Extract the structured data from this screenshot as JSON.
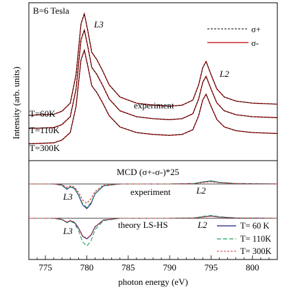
{
  "chart_data": {
    "type": "line",
    "title": "",
    "xlabel": "photon energy (eV)",
    "ylabel": "Intensity (arb. units)",
    "xlim": [
      773,
      803
    ],
    "x_ticks": [
      775,
      780,
      785,
      790,
      795,
      800
    ],
    "x_tick_labels": [
      "775",
      "780",
      "785",
      "790",
      "795",
      "800"
    ],
    "grid": false,
    "panels": [
      {
        "name": "xas",
        "annotations": {
          "field": "B=6 Tesla",
          "peak_l3": "L3",
          "peak_l2": "L2",
          "label": "experiment",
          "t60": "T=60K",
          "t110": "T=110K",
          "t300": "T=300K"
        },
        "legend": {
          "position": "top-right",
          "entries": [
            {
              "name": "σ+",
              "color": "#000000",
              "style": "dashed"
            },
            {
              "name": "σ-",
              "color": "#c00000",
              "style": "solid"
            }
          ]
        },
        "series_template_x": [
          773,
          776,
          777,
          778,
          778.7,
          779.3,
          779.7,
          780.1,
          780.6,
          781.2,
          781.9,
          782.7,
          784,
          786,
          788,
          790,
          791.5,
          792.8,
          793.5,
          794,
          794.4,
          795,
          795.7,
          796.6,
          798,
          800,
          803
        ],
        "series_template_y": [
          0.0,
          0.01,
          0.04,
          0.12,
          0.4,
          0.9,
          1.0,
          0.84,
          0.62,
          0.55,
          0.44,
          0.3,
          0.18,
          0.12,
          0.1,
          0.09,
          0.1,
          0.15,
          0.3,
          0.47,
          0.53,
          0.4,
          0.26,
          0.18,
          0.14,
          0.12,
          0.11
        ],
        "curves": [
          {
            "temperature": "T=60K",
            "offset": 0.0,
            "scale": 1.0
          },
          {
            "temperature": "T=110K",
            "offset": -0.13,
            "scale": 0.97
          },
          {
            "temperature": "T=300K",
            "offset": -0.28,
            "scale": 0.92
          }
        ]
      },
      {
        "name": "mcd-experiment",
        "annotations": {
          "title": "MCD (σ+-σ-)*25",
          "peak_l3": "L3",
          "peak_l2": "L2",
          "label": "experiment"
        },
        "series": [
          {
            "name": "T= 60 K",
            "color": "#1a1a7a",
            "style": "solid",
            "x": [
              773,
              776,
              777,
              777.6,
              778,
              778.5,
              779,
              779.5,
              780,
              780.5,
              781,
              782,
              784,
              790,
              793,
              794,
              795,
              796,
              798,
              803
            ],
            "y": [
              0,
              0,
              -0.05,
              -0.22,
              -0.12,
              -0.18,
              -0.45,
              -0.85,
              -1.0,
              -0.8,
              -0.4,
              -0.08,
              0,
              0,
              0.02,
              0.08,
              0.12,
              0.06,
              0.02,
              0
            ]
          },
          {
            "name": "T= 110K",
            "color": "#22a060",
            "style": "dashed",
            "x": [
              773,
              776,
              777,
              777.6,
              778,
              778.5,
              779,
              779.5,
              780,
              780.5,
              781,
              782,
              784,
              790,
              793,
              794,
              795,
              796,
              798,
              803
            ],
            "y": [
              0,
              0,
              -0.04,
              -0.2,
              -0.11,
              -0.16,
              -0.42,
              -0.8,
              -0.95,
              -0.76,
              -0.38,
              -0.07,
              0,
              0,
              0.02,
              0.09,
              0.13,
              0.07,
              0.02,
              0
            ]
          },
          {
            "name": "T= 300K",
            "color": "#d03030",
            "style": "dashed",
            "x": [
              773,
              776,
              777,
              777.6,
              778,
              778.5,
              779,
              779.5,
              780,
              780.5,
              781,
              782,
              784,
              790,
              793,
              794,
              795,
              796,
              798,
              803
            ],
            "y": [
              0,
              0,
              -0.03,
              -0.14,
              -0.08,
              -0.12,
              -0.34,
              -0.65,
              -0.78,
              -0.6,
              -0.3,
              -0.05,
              0,
              0,
              0.01,
              0.06,
              0.09,
              0.05,
              0.01,
              0
            ]
          }
        ]
      },
      {
        "name": "mcd-theory",
        "annotations": {
          "peak_l3": "L3",
          "peak_l2": "L2",
          "label": "theory LS-HS"
        },
        "legend": {
          "position": "bottom-right",
          "entries": [
            {
              "name": "T=  60 K",
              "color": "#1a1a7a",
              "style": "solid"
            },
            {
              "name": "T= 110K",
              "color": "#22a060",
              "style": "dashed"
            },
            {
              "name": "T= 300K",
              "color": "#d03030",
              "style": "dashed"
            }
          ]
        },
        "series": [
          {
            "name": "T= 60 K",
            "color": "#1a1a7a",
            "style": "solid",
            "x": [
              773,
              776,
              777,
              777.6,
              778,
              778.5,
              779,
              779.5,
              780,
              780.5,
              781,
              782,
              784,
              790,
              793,
              794,
              795,
              796,
              798,
              803
            ],
            "y": [
              0,
              0,
              -0.06,
              -0.2,
              -0.12,
              -0.2,
              -0.48,
              -0.88,
              -1.0,
              -0.82,
              -0.42,
              -0.09,
              0,
              0,
              0.02,
              0.07,
              0.11,
              0.06,
              0.02,
              0
            ]
          },
          {
            "name": "T= 110K",
            "color": "#22a060",
            "style": "dashed",
            "x": [
              773,
              776,
              777,
              777.6,
              778,
              778.5,
              779,
              779.5,
              780,
              780.5,
              781,
              782,
              784,
              790,
              793,
              794,
              795,
              796,
              798,
              803
            ],
            "y": [
              0,
              0,
              -0.07,
              -0.22,
              -0.14,
              -0.24,
              -0.6,
              -1.15,
              -1.35,
              -1.1,
              -0.55,
              -0.12,
              0,
              0,
              0.02,
              0.09,
              0.14,
              0.08,
              0.02,
              0
            ]
          },
          {
            "name": "T= 300K",
            "color": "#d03030",
            "style": "dashed",
            "x": [
              773,
              776,
              777,
              777.6,
              778,
              778.5,
              779,
              779.5,
              780,
              780.5,
              781,
              782,
              784,
              790,
              793,
              794,
              795,
              796,
              798,
              803
            ],
            "y": [
              0,
              0,
              -0.05,
              -0.18,
              -0.1,
              -0.18,
              -0.45,
              -0.85,
              -0.98,
              -0.8,
              -0.4,
              -0.08,
              0,
              0,
              0.01,
              0.06,
              0.1,
              0.05,
              0.01,
              0
            ]
          }
        ]
      }
    ]
  }
}
